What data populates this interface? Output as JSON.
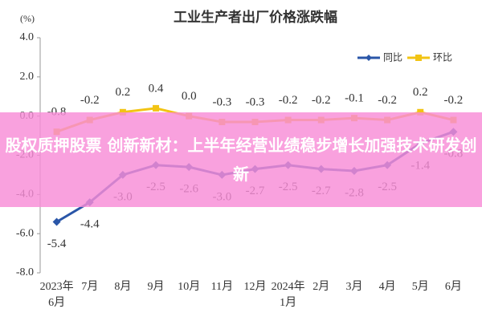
{
  "chart_data": {
    "type": "line",
    "title": "工业生产者出厂价格涨跌幅",
    "y_label": "(%)",
    "categories": [
      "2023年6月",
      "7月",
      "8月",
      "9月",
      "10月",
      "11月",
      "12月",
      "2024年1月",
      "2月",
      "3月",
      "4月",
      "5月",
      "6月"
    ],
    "series": [
      {
        "name": "同比",
        "color": "#2a56a8",
        "marker": "diamond",
        "values": [
          -5.4,
          -4.4,
          -3.0,
          -2.5,
          -2.6,
          -3.0,
          -2.7,
          -2.5,
          -2.7,
          -2.8,
          -2.5,
          -1.4,
          -0.8
        ],
        "value_labels": [
          "-5.4",
          "-4.4",
          "-3.0",
          "-2.5",
          "-2.6",
          "-3.0",
          "-2.7",
          "-2.5",
          "-2.7",
          "-2.8",
          "-2.5",
          "-1.4",
          "-0.8"
        ]
      },
      {
        "name": "环比",
        "color": "#f2c414",
        "marker": "square",
        "values": [
          -0.8,
          -0.2,
          0.2,
          0.4,
          0.0,
          -0.3,
          -0.3,
          -0.2,
          -0.2,
          -0.1,
          -0.2,
          0.2,
          -0.2
        ],
        "value_labels": [
          "-0.8",
          "-0.2",
          "0.2",
          "0.4",
          "0.0",
          "-0.3",
          "-0.3",
          "-0.2",
          "-0.2",
          "-0.1",
          "-0.2",
          "0.2",
          "-0.2"
        ]
      }
    ],
    "ylim": [
      -8,
      4
    ],
    "yticks": [
      {
        "value": 4,
        "label": "4.0"
      },
      {
        "value": 2,
        "label": "2.0"
      },
      {
        "value": 0,
        "label": "0.0"
      },
      {
        "value": -2,
        "label": "-2.0"
      },
      {
        "value": -4,
        "label": "-4.0"
      },
      {
        "value": -6,
        "label": "-6.0"
      },
      {
        "value": -8,
        "label": "-8.0"
      }
    ],
    "grid": false,
    "legend": "top-right"
  },
  "banner": "股权质押股票 创新新材：上半年经营业绩稳步增长加强技术研发创新"
}
